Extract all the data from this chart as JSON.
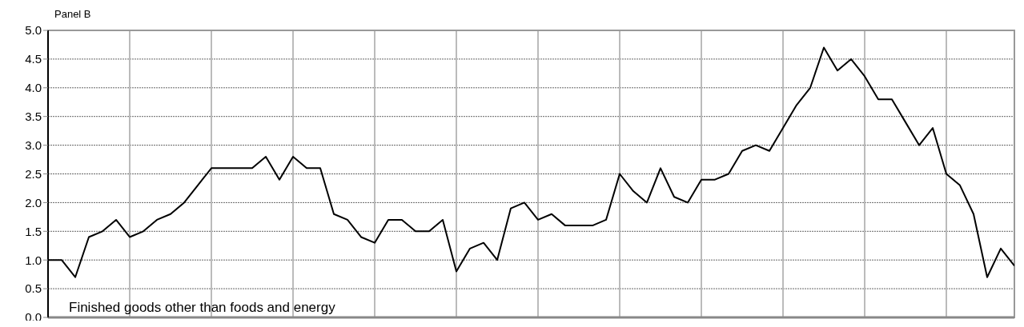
{
  "chart_data": {
    "type": "line",
    "title": "Panel B",
    "annotations": [
      "Finished goods other than foods and energy"
    ],
    "categories": [
      null,
      null,
      null,
      null,
      null,
      null,
      null,
      null,
      null,
      null,
      null,
      null,
      null,
      null,
      null,
      null,
      null,
      null,
      null,
      null,
      null,
      null,
      null,
      null,
      null,
      null,
      null,
      null,
      null,
      null,
      null,
      null,
      null,
      null,
      null,
      null,
      null,
      null,
      null,
      null,
      null,
      null,
      null,
      null,
      null,
      null,
      null,
      null,
      null,
      null,
      null,
      null,
      null,
      null,
      null,
      null,
      null,
      null,
      null,
      null,
      null,
      null,
      null,
      null,
      null,
      null,
      null,
      null,
      null,
      null,
      null,
      null
    ],
    "series": [
      {
        "color": "#000000",
        "values": [
          1.0,
          1.0,
          0.7,
          1.4,
          1.5,
          1.7,
          1.4,
          1.5,
          1.7,
          1.8,
          2.0,
          2.3,
          2.6,
          2.6,
          2.6,
          2.6,
          2.8,
          2.4,
          2.8,
          2.6,
          2.6,
          1.8,
          1.7,
          1.4,
          1.3,
          1.7,
          1.7,
          1.5,
          1.5,
          1.7,
          0.8,
          1.2,
          1.3,
          1.0,
          1.9,
          2.0,
          1.7,
          1.8,
          1.6,
          1.6,
          1.6,
          1.7,
          2.5,
          2.2,
          2.0,
          2.6,
          2.1,
          2.0,
          2.4,
          2.4,
          2.5,
          2.9,
          3.0,
          2.9,
          3.3,
          3.7,
          4.0,
          4.7,
          4.3,
          4.5,
          4.2,
          3.8,
          3.8,
          3.4,
          3.0,
          3.3,
          2.5,
          2.3,
          1.8,
          0.7,
          1.2,
          0.9
        ]
      }
    ],
    "ylim": [
      0,
      5
    ],
    "yticks": [
      {
        "value": 0,
        "label": "0.0"
      },
      {
        "value": 0.5,
        "label": "0.5"
      },
      {
        "value": 1,
        "label": "1.0"
      },
      {
        "value": 1.5,
        "label": "1.5"
      },
      {
        "value": 2,
        "label": "2.0"
      },
      {
        "value": 2.5,
        "label": "2.5"
      },
      {
        "value": 3,
        "label": "3.0"
      },
      {
        "value": 3.5,
        "label": "3.5"
      },
      {
        "value": 4,
        "label": "4.0"
      },
      {
        "value": 4.5,
        "label": "4.5"
      },
      {
        "value": 5,
        "label": "5.0"
      }
    ],
    "grid": true,
    "marker": "none",
    "line_style": "solid"
  }
}
